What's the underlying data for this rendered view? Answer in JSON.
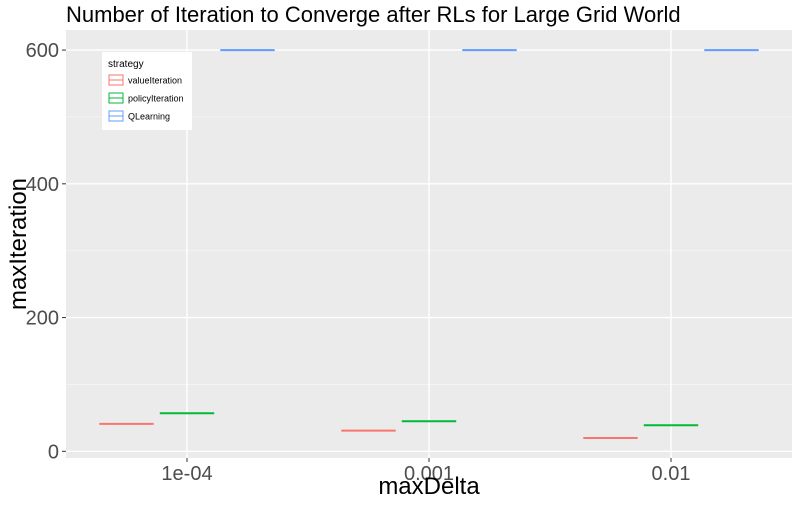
{
  "chart_data": {
    "type": "boxplot",
    "title": "Number of Iteration to Converge after RLs for Large Grid World",
    "xlabel": "maxDelta",
    "ylabel": "maxIteration",
    "categories": [
      "1e-04",
      "0.001",
      "0.01"
    ],
    "ylim": [
      -10,
      630
    ],
    "yticks": [
      0,
      200,
      400,
      600
    ],
    "grid": true,
    "legend": {
      "title": "strategy",
      "position": "top-left inside"
    },
    "series": [
      {
        "name": "valueIteration",
        "color": "#F8766D",
        "values": [
          41,
          31,
          20
        ]
      },
      {
        "name": "policyIteration",
        "color": "#00BA38",
        "values": [
          57,
          45,
          39
        ]
      },
      {
        "name": "QLearning",
        "color": "#619CFF",
        "values": [
          600,
          600,
          600
        ]
      }
    ]
  }
}
